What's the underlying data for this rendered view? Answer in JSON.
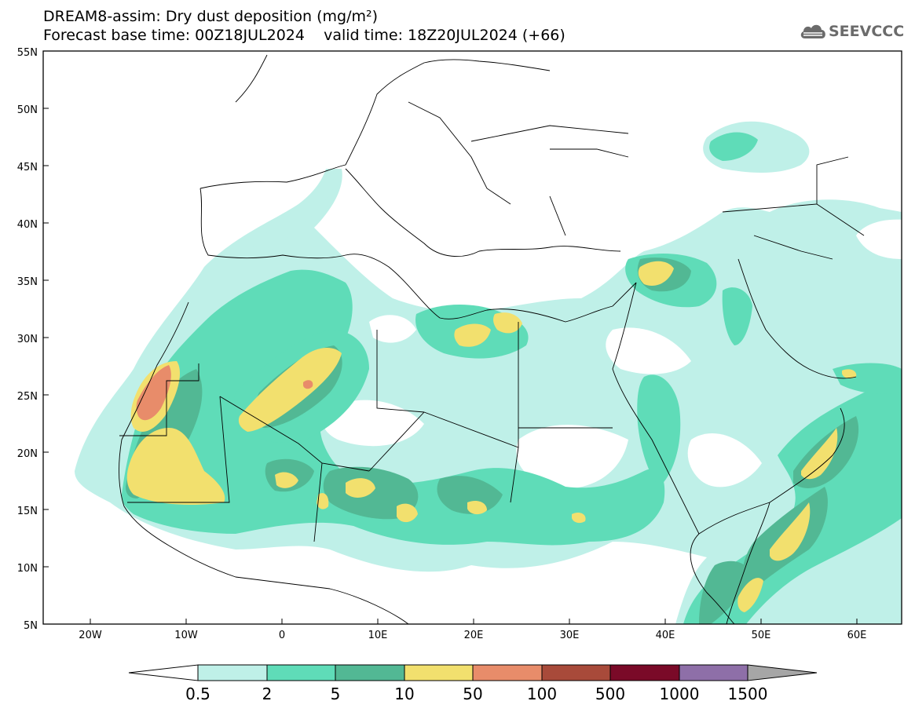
{
  "header": {
    "title_line1": "DREAM8-assim: Dry dust deposition (mg/m²)",
    "title_line2": "Forecast base time: 00Z18JUL2024    valid time: 18Z20JUL2024 (+66)",
    "logo_text": "SEEVCCC"
  },
  "map": {
    "lat_labels": [
      "55N",
      "50N",
      "45N",
      "40N",
      "35N",
      "30N",
      "25N",
      "20N",
      "15N",
      "10N",
      "5N"
    ],
    "lon_labels": [
      "20W",
      "10W",
      "0",
      "10E",
      "20E",
      "30E",
      "40E",
      "50E",
      "60E"
    ],
    "colors": {
      "level1": "#bff0e8",
      "level2": "#5fdcb8",
      "level3": "#52b894",
      "level4": "#f2e06e",
      "level5": "#e88c6a",
      "level6": "#a84a3a",
      "level7": "#7a0a28",
      "level8": "#8e6fa8",
      "over": "#a6a6a6",
      "border": "#000000"
    }
  },
  "colorbar": {
    "labels": [
      "0.5",
      "2",
      "5",
      "10",
      "50",
      "100",
      "500",
      "1000",
      "1500"
    ],
    "colors": [
      "#bff0e8",
      "#5fdcb8",
      "#52b894",
      "#f2e06e",
      "#e88c6a",
      "#a84a3a",
      "#7a0a28",
      "#8e6fa8"
    ],
    "under_color": "#ffffff",
    "over_color": "#a6a6a6"
  }
}
